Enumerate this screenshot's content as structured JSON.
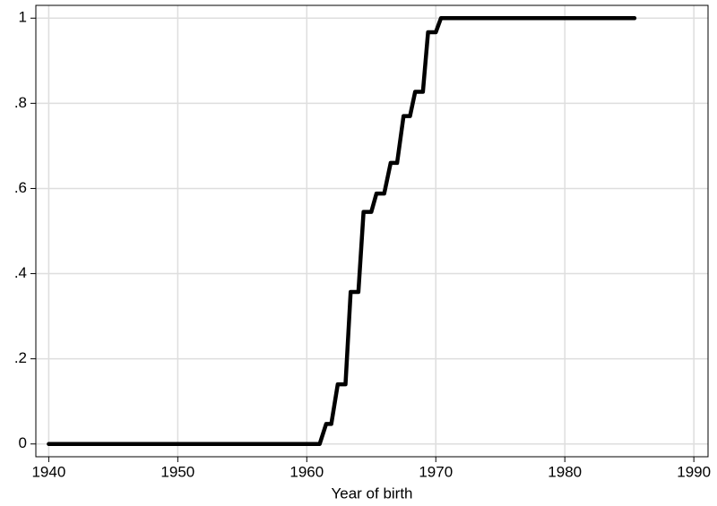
{
  "chart_data": {
    "type": "line",
    "x_label": "Year of birth",
    "x": [
      1940,
      1961.0,
      1961.5,
      1961.9,
      1962.4,
      1963.0,
      1963.4,
      1964.0,
      1964.4,
      1965.0,
      1965.4,
      1966.0,
      1966.5,
      1967.0,
      1967.5,
      1968.0,
      1968.4,
      1969.0,
      1969.4,
      1970.0,
      1970.4,
      1985.4
    ],
    "series": [
      {
        "color": "#000000",
        "values": [
          0,
          0,
          0.047,
          0.047,
          0.14,
          0.14,
          0.357,
          0.357,
          0.545,
          0.545,
          0.588,
          0.588,
          0.66,
          0.66,
          0.77,
          0.77,
          0.827,
          0.827,
          0.967,
          0.967,
          1,
          1
        ]
      }
    ],
    "xlim": [
      1939,
      1991.1
    ],
    "ylim": [
      -0.03,
      1.03
    ],
    "xticks": [
      1940,
      1950,
      1960,
      1970,
      1980,
      1990
    ],
    "yticks": [
      0,
      {
        "value": 0.2,
        "label": ".2"
      },
      {
        "value": 0.4,
        "label": ".4"
      },
      {
        "value": 0.6,
        "label": ".6"
      },
      {
        "value": 0.8,
        "label": ".8"
      },
      1
    ],
    "grid": true
  }
}
